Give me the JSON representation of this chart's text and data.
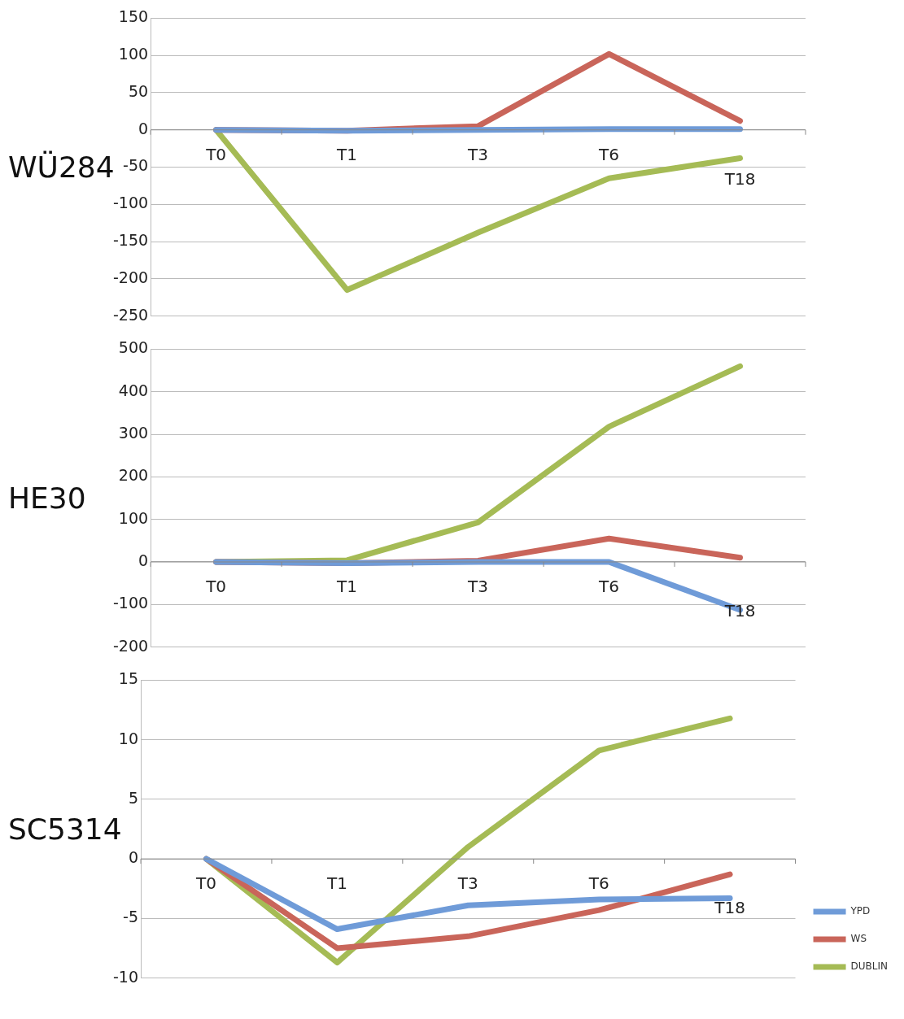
{
  "chart_data": [
    {
      "type": "line",
      "title": "WÜ284",
      "categories": [
        "T0",
        "T1",
        "T3",
        "T6",
        "T18"
      ],
      "ylim": [
        -250,
        150
      ],
      "yticks": [
        -250,
        -200,
        -150,
        -100,
        -50,
        0,
        50,
        100,
        150
      ],
      "grid": "y",
      "legend": false,
      "series": [
        {
          "color": "#6f9bd8",
          "values": [
            0,
            -1,
            0,
            1,
            1
          ]
        },
        {
          "color": "#c9655a",
          "values": [
            0,
            -1,
            5,
            102,
            12
          ]
        },
        {
          "color": "#a5bb55",
          "values": [
            0,
            -215,
            -138,
            -65,
            -38
          ]
        }
      ]
    },
    {
      "type": "line",
      "title": "HE30",
      "categories": [
        "T0",
        "T1",
        "T3",
        "T6",
        "T18"
      ],
      "ylim": [
        -200,
        500
      ],
      "yticks": [
        -200,
        -100,
        0,
        100,
        200,
        300,
        400,
        500
      ],
      "grid": "y",
      "legend": false,
      "series": [
        {
          "color": "#6f9bd8",
          "values": [
            0,
            -3,
            0,
            0,
            -113
          ]
        },
        {
          "color": "#c9655a",
          "values": [
            0,
            -3,
            3,
            55,
            10
          ]
        },
        {
          "color": "#a5bb55",
          "values": [
            0,
            4,
            93,
            318,
            460
          ]
        }
      ]
    },
    {
      "type": "line",
      "title": "SC5314",
      "categories": [
        "T0",
        "T1",
        "T3",
        "T6",
        "T18"
      ],
      "ylim": [
        -10,
        15
      ],
      "yticks": [
        -10,
        -5,
        0,
        5,
        10,
        15
      ],
      "grid": "y",
      "legend": "bottom right",
      "series": [
        {
          "name": "YPD",
          "color": "#6f9bd8",
          "values": [
            0,
            -5.9,
            -3.9,
            -3.4,
            -3.3
          ]
        },
        {
          "name": "WS",
          "color": "#c9655a",
          "values": [
            0,
            -7.5,
            -6.5,
            -4.3,
            -1.3
          ]
        },
        {
          "name": "DUBLIN",
          "color": "#a5bb55",
          "values": [
            0,
            -8.7,
            1,
            9.1,
            11.8
          ]
        }
      ]
    }
  ]
}
